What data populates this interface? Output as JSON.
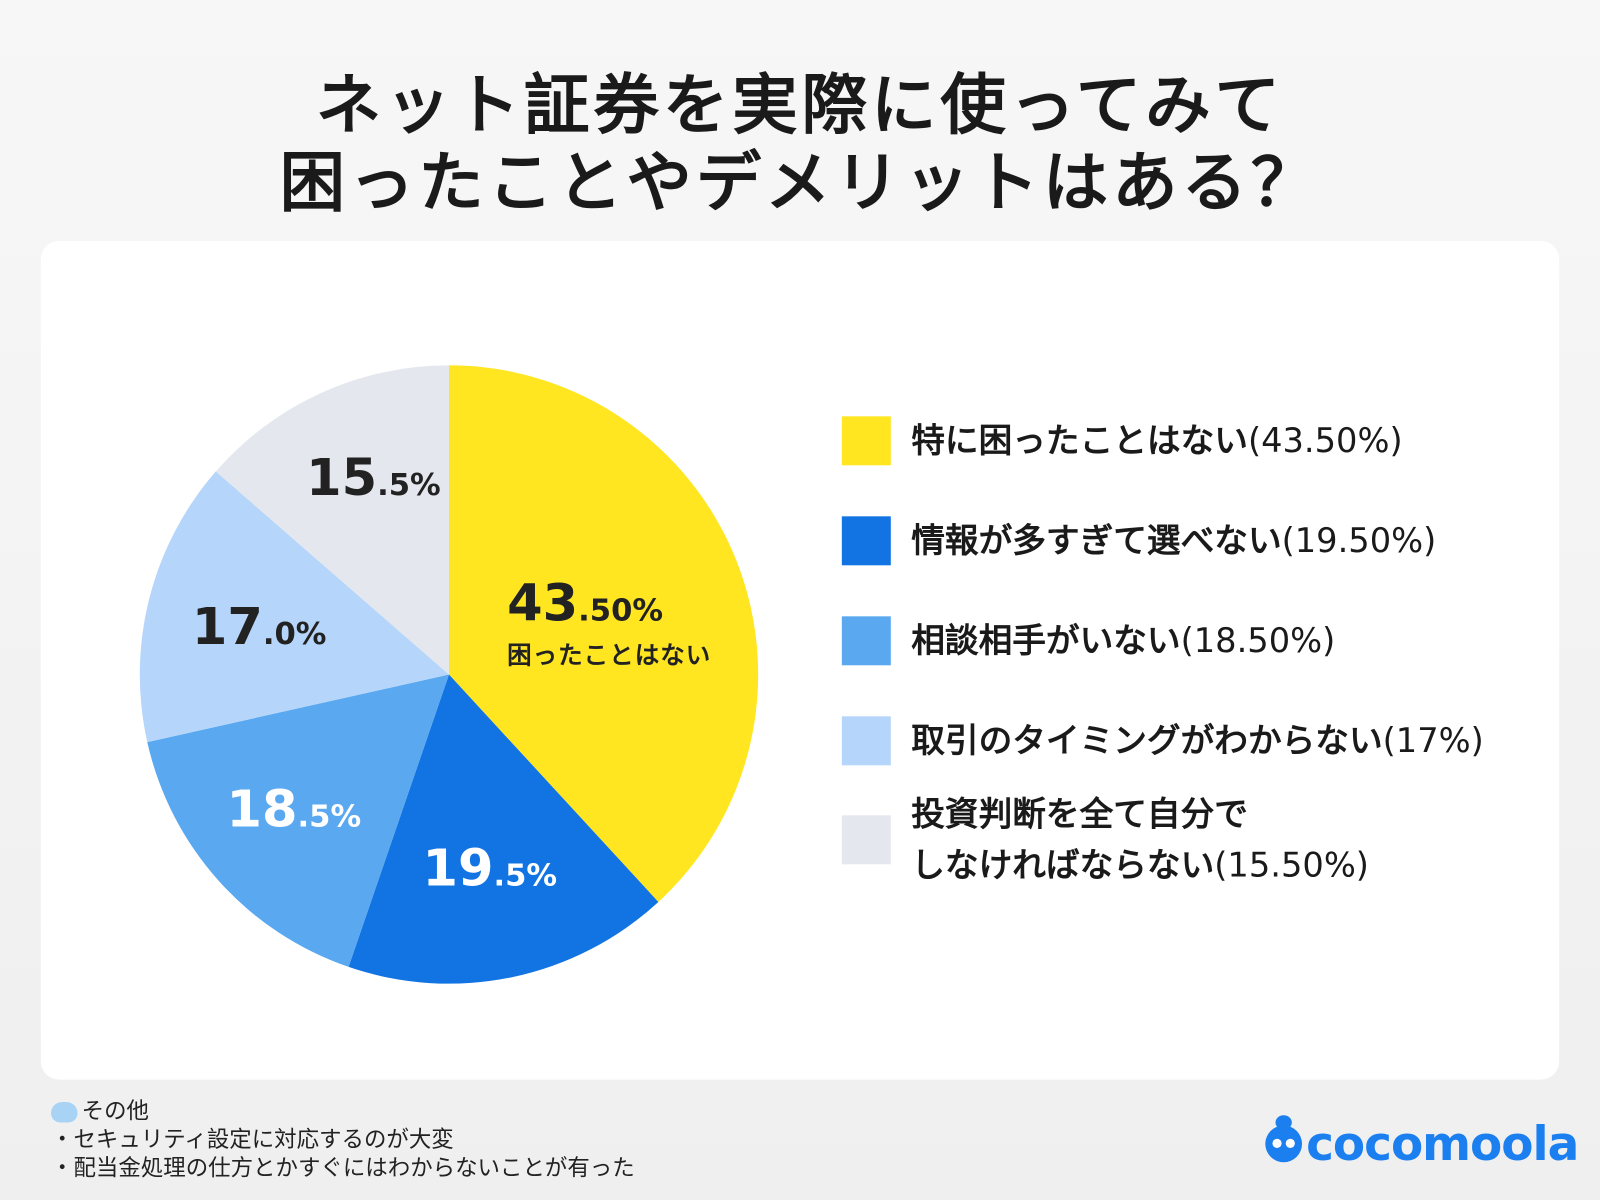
{
  "title_lines": [
    "ネット証券を実際に使ってみて",
    "困ったことやデメリットはある？"
  ],
  "chart_data": {
    "type": "pie",
    "start": "top",
    "direction": "clockwise",
    "series": [
      {
        "name": "特に困ったことはない",
        "legend_pct": "(43.50%)",
        "value": 43.5,
        "label_big": "43",
        "label_small": ".50%",
        "label_sub": "困ったことはない",
        "color": "#FFE620"
      },
      {
        "name": "情報が多すぎて選べない",
        "legend_pct": "(19.50%)",
        "value": 19.5,
        "label_big": "19",
        "label_small": ".5%",
        "color": "#1273E3"
      },
      {
        "name": "相談相手がいない",
        "legend_pct": "(18.50%)",
        "value": 18.5,
        "label_big": "18",
        "label_small": ".5%",
        "color": "#5AA8F0"
      },
      {
        "name": "取引のタイミングがわからない",
        "legend_pct": "(17%)",
        "value": 17.0,
        "label_big": "17",
        "label_small": ".0%",
        "color": "#B5D6FA"
      },
      {
        "name_lines": [
          "投資判断を全て自分で",
          "しなければならない"
        ],
        "legend_pct": "(15.50%)",
        "value": 15.5,
        "label_big": "15",
        "label_small": ".5%",
        "color": "#E4E8EE"
      }
    ],
    "legend": "right"
  },
  "note": {
    "heading": "その他",
    "items": [
      "・セキュリティ設定に対応するのが大変",
      "・配当金処理の仕方とかすぐにはわからないことが有った"
    ]
  },
  "logo": "cocomoola"
}
